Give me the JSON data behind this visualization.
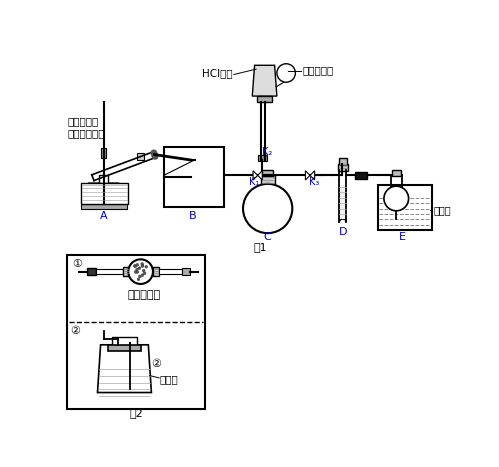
{
  "bg_color": "#ffffff",
  "line_color": "#000000",
  "label_color": "#0000cd",
  "fig1_label": "图1",
  "fig2_label": "图2",
  "labels": {
    "A": "A",
    "B": "B",
    "C": "C",
    "D": "D",
    "E": "E"
  },
  "annotations": {
    "top_left": "化肥固体和\n氢氧化钙固体",
    "HCl": "HCl气体",
    "balloon": "干瘪的气球",
    "K1": "K₁",
    "K2": "K₂",
    "K3": "K₃",
    "distilled": "蒸馏水",
    "fig2_1": "碱石灰固体",
    "fig2_2": "浓硫酸",
    "circle1": "①",
    "circle2": "②"
  }
}
